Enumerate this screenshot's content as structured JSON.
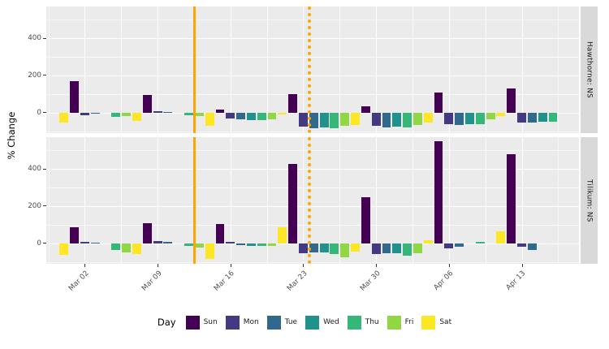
{
  "figure": {
    "background": "#FFFFFF",
    "panel_background": "#EBEBEB",
    "strip_background": "#D9D9D9",
    "grid_color": "#FFFFFF",
    "axis_text_color": "#4D4D4D",
    "event_line_color": "#FFA500"
  },
  "chart_data": {
    "type": "bar",
    "title": "",
    "xlabel": "",
    "ylabel": "% Change",
    "legend_title": "Day",
    "legend_position": "bottom",
    "grid": true,
    "x_encoding": "day index along date axis; index 0 = first Sat bar, ticks fall on labeled dates",
    "x_domain": [
      -1.7,
      49.5
    ],
    "y_domain": [
      -110,
      570
    ],
    "x_ticks": [
      {
        "d": 2,
        "label": "Mar 02"
      },
      {
        "d": 9,
        "label": "Mar 09"
      },
      {
        "d": 16,
        "label": "Mar 16"
      },
      {
        "d": 23,
        "label": "Mar 23"
      },
      {
        "d": 30,
        "label": "Mar 30"
      },
      {
        "d": 37,
        "label": "Apr 06"
      },
      {
        "d": 44,
        "label": "Apr 13"
      }
    ],
    "y_ticks": [
      {
        "v": 0,
        "label": "0"
      },
      {
        "v": 200,
        "label": "200"
      },
      {
        "v": 400,
        "label": "400"
      }
    ],
    "vlines": [
      {
        "x": 12.6,
        "style": "solid",
        "color": "#FFA500"
      },
      {
        "x": 23.6,
        "style": "dotted",
        "color": "#FFA500"
      }
    ],
    "day_colors": {
      "Sun": "#440154",
      "Mon": "#443983",
      "Tue": "#31688E",
      "Wed": "#21918C",
      "Thu": "#35B779",
      "Fri": "#90D743",
      "Sat": "#FDE725"
    },
    "legend": [
      {
        "label": "Sun",
        "color": "#440154"
      },
      {
        "label": "Mon",
        "color": "#443983"
      },
      {
        "label": "Tue",
        "color": "#31688E"
      },
      {
        "label": "Wed",
        "color": "#21918C"
      },
      {
        "label": "Thu",
        "color": "#35B779"
      },
      {
        "label": "Fri",
        "color": "#90D743"
      },
      {
        "label": "Sat",
        "color": "#FDE725"
      }
    ],
    "facets": [
      {
        "label": "Hawthorne: NS",
        "bars": [
          {
            "d": 0,
            "day": "Sat",
            "v": -55
          },
          {
            "d": 1,
            "day": "Sun",
            "v": 170
          },
          {
            "d": 2,
            "day": "Mon",
            "v": -12
          },
          {
            "d": 3,
            "day": "Tue",
            "v": -5
          },
          {
            "d": 5,
            "day": "Thu",
            "v": -22
          },
          {
            "d": 6,
            "day": "Fri",
            "v": -18
          },
          {
            "d": 7,
            "day": "Sat",
            "v": -45
          },
          {
            "d": 8,
            "day": "Sun",
            "v": 95
          },
          {
            "d": 9,
            "day": "Mon",
            "v": 6
          },
          {
            "d": 10,
            "day": "Tue",
            "v": 4
          },
          {
            "d": 12,
            "day": "Thu",
            "v": -14
          },
          {
            "d": 13,
            "day": "Fri",
            "v": -18
          },
          {
            "d": 14,
            "day": "Sat",
            "v": -70
          },
          {
            "d": 15,
            "day": "Sun",
            "v": 15
          },
          {
            "d": 16,
            "day": "Mon",
            "v": -30
          },
          {
            "d": 17,
            "day": "Tue",
            "v": -38
          },
          {
            "d": 18,
            "day": "Wed",
            "v": -42
          },
          {
            "d": 19,
            "day": "Thu",
            "v": -40
          },
          {
            "d": 20,
            "day": "Fri",
            "v": -35
          },
          {
            "d": 21,
            "day": "Sat",
            "v": -10
          },
          {
            "d": 22,
            "day": "Sun",
            "v": 100
          },
          {
            "d": 23,
            "day": "Mon",
            "v": -75
          },
          {
            "d": 24,
            "day": "Tue",
            "v": -85
          },
          {
            "d": 25,
            "day": "Wed",
            "v": -80
          },
          {
            "d": 26,
            "day": "Thu",
            "v": -82
          },
          {
            "d": 27,
            "day": "Fri",
            "v": -72
          },
          {
            "d": 28,
            "day": "Sat",
            "v": -65
          },
          {
            "d": 29,
            "day": "Sun",
            "v": 35
          },
          {
            "d": 30,
            "day": "Mon",
            "v": -72
          },
          {
            "d": 31,
            "day": "Tue",
            "v": -78
          },
          {
            "d": 32,
            "day": "Wed",
            "v": -75
          },
          {
            "d": 33,
            "day": "Thu",
            "v": -78
          },
          {
            "d": 34,
            "day": "Fri",
            "v": -65
          },
          {
            "d": 35,
            "day": "Sat",
            "v": -55
          },
          {
            "d": 36,
            "day": "Sun",
            "v": 110
          },
          {
            "d": 37,
            "day": "Mon",
            "v": -62
          },
          {
            "d": 38,
            "day": "Tue",
            "v": -65
          },
          {
            "d": 39,
            "day": "Wed",
            "v": -60
          },
          {
            "d": 40,
            "day": "Thu",
            "v": -62
          },
          {
            "d": 41,
            "day": "Fri",
            "v": -38
          },
          {
            "d": 42,
            "day": "Sat",
            "v": -20
          },
          {
            "d": 43,
            "day": "Sun",
            "v": 130
          },
          {
            "d": 44,
            "day": "Mon",
            "v": -55
          },
          {
            "d": 45,
            "day": "Tue",
            "v": -52
          },
          {
            "d": 46,
            "day": "Wed",
            "v": -48
          },
          {
            "d": 47,
            "day": "Thu",
            "v": -50
          }
        ]
      },
      {
        "label": "Tilikum: NS",
        "bars": [
          {
            "d": 0,
            "day": "Sat",
            "v": -62
          },
          {
            "d": 1,
            "day": "Sun",
            "v": 85
          },
          {
            "d": 2,
            "day": "Mon",
            "v": 8
          },
          {
            "d": 3,
            "day": "Tue",
            "v": 5
          },
          {
            "d": 5,
            "day": "Thu",
            "v": -35
          },
          {
            "d": 6,
            "day": "Fri",
            "v": -48
          },
          {
            "d": 7,
            "day": "Sat",
            "v": -58
          },
          {
            "d": 8,
            "day": "Sun",
            "v": 108
          },
          {
            "d": 9,
            "day": "Mon",
            "v": 12
          },
          {
            "d": 10,
            "day": "Tue",
            "v": 8
          },
          {
            "d": 12,
            "day": "Thu",
            "v": -12
          },
          {
            "d": 13,
            "day": "Fri",
            "v": -22
          },
          {
            "d": 14,
            "day": "Sat",
            "v": -85
          },
          {
            "d": 15,
            "day": "Sun",
            "v": 105
          },
          {
            "d": 16,
            "day": "Mon",
            "v": 8
          },
          {
            "d": 17,
            "day": "Tue",
            "v": -8
          },
          {
            "d": 18,
            "day": "Wed",
            "v": -12
          },
          {
            "d": 19,
            "day": "Thu",
            "v": -15
          },
          {
            "d": 20,
            "day": "Fri",
            "v": -15
          },
          {
            "d": 21,
            "day": "Sat",
            "v": 88
          },
          {
            "d": 22,
            "day": "Sun",
            "v": 425
          },
          {
            "d": 23,
            "day": "Mon",
            "v": -55
          },
          {
            "d": 24,
            "day": "Tue",
            "v": -50
          },
          {
            "d": 25,
            "day": "Wed",
            "v": -48
          },
          {
            "d": 26,
            "day": "Thu",
            "v": -58
          },
          {
            "d": 27,
            "day": "Fri",
            "v": -75
          },
          {
            "d": 28,
            "day": "Sat",
            "v": -45
          },
          {
            "d": 29,
            "day": "Sun",
            "v": 248
          },
          {
            "d": 30,
            "day": "Mon",
            "v": -58
          },
          {
            "d": 31,
            "day": "Tue",
            "v": -52
          },
          {
            "d": 32,
            "day": "Wed",
            "v": -55
          },
          {
            "d": 33,
            "day": "Thu",
            "v": -65
          },
          {
            "d": 34,
            "day": "Fri",
            "v": -52
          },
          {
            "d": 35,
            "day": "Sat",
            "v": 15
          },
          {
            "d": 36,
            "day": "Sun",
            "v": 550
          },
          {
            "d": 37,
            "day": "Mon",
            "v": -28
          },
          {
            "d": 38,
            "day": "Tue",
            "v": -18
          },
          {
            "d": 40,
            "day": "Thu",
            "v": 6
          },
          {
            "d": 42,
            "day": "Sat",
            "v": 65
          },
          {
            "d": 43,
            "day": "Sun",
            "v": 478
          },
          {
            "d": 44,
            "day": "Mon",
            "v": -18
          },
          {
            "d": 45,
            "day": "Tue",
            "v": -35
          }
        ]
      }
    ]
  }
}
